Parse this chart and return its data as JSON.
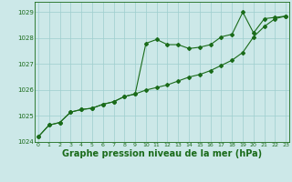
{
  "title": "Graphe pression niveau de la mer (hPa)",
  "xlabel_hours": [
    0,
    1,
    2,
    3,
    4,
    5,
    6,
    7,
    8,
    9,
    10,
    11,
    12,
    13,
    14,
    15,
    16,
    17,
    18,
    19,
    20,
    21,
    22,
    23
  ],
  "series1": [
    1024.2,
    1024.65,
    1024.75,
    1025.15,
    1025.25,
    1025.3,
    1025.45,
    1025.55,
    1025.75,
    1025.85,
    1027.8,
    1027.95,
    1027.75,
    1027.75,
    1027.6,
    1027.65,
    1027.75,
    1028.05,
    1028.15,
    1029.0,
    1028.2,
    1028.75,
    1028.8,
    1028.85
  ],
  "series2": [
    1024.2,
    1024.65,
    1024.75,
    1025.15,
    1025.25,
    1025.3,
    1025.45,
    1025.55,
    1025.75,
    1025.85,
    1026.0,
    1026.1,
    1026.2,
    1026.35,
    1026.5,
    1026.6,
    1026.75,
    1026.95,
    1027.15,
    1027.45,
    1028.05,
    1028.45,
    1028.75,
    1028.85
  ],
  "ylim": [
    1024.0,
    1029.4
  ],
  "yticks": [
    1024,
    1025,
    1026,
    1027,
    1028,
    1029
  ],
  "xlim": [
    -0.3,
    23.3
  ],
  "line_color": "#1a6b1a",
  "bg_color": "#cce8e8",
  "grid_color": "#9ecece",
  "title_color": "#1a6b1a",
  "title_fontsize": 7.0,
  "marker": "D",
  "marker_size": 2.0
}
